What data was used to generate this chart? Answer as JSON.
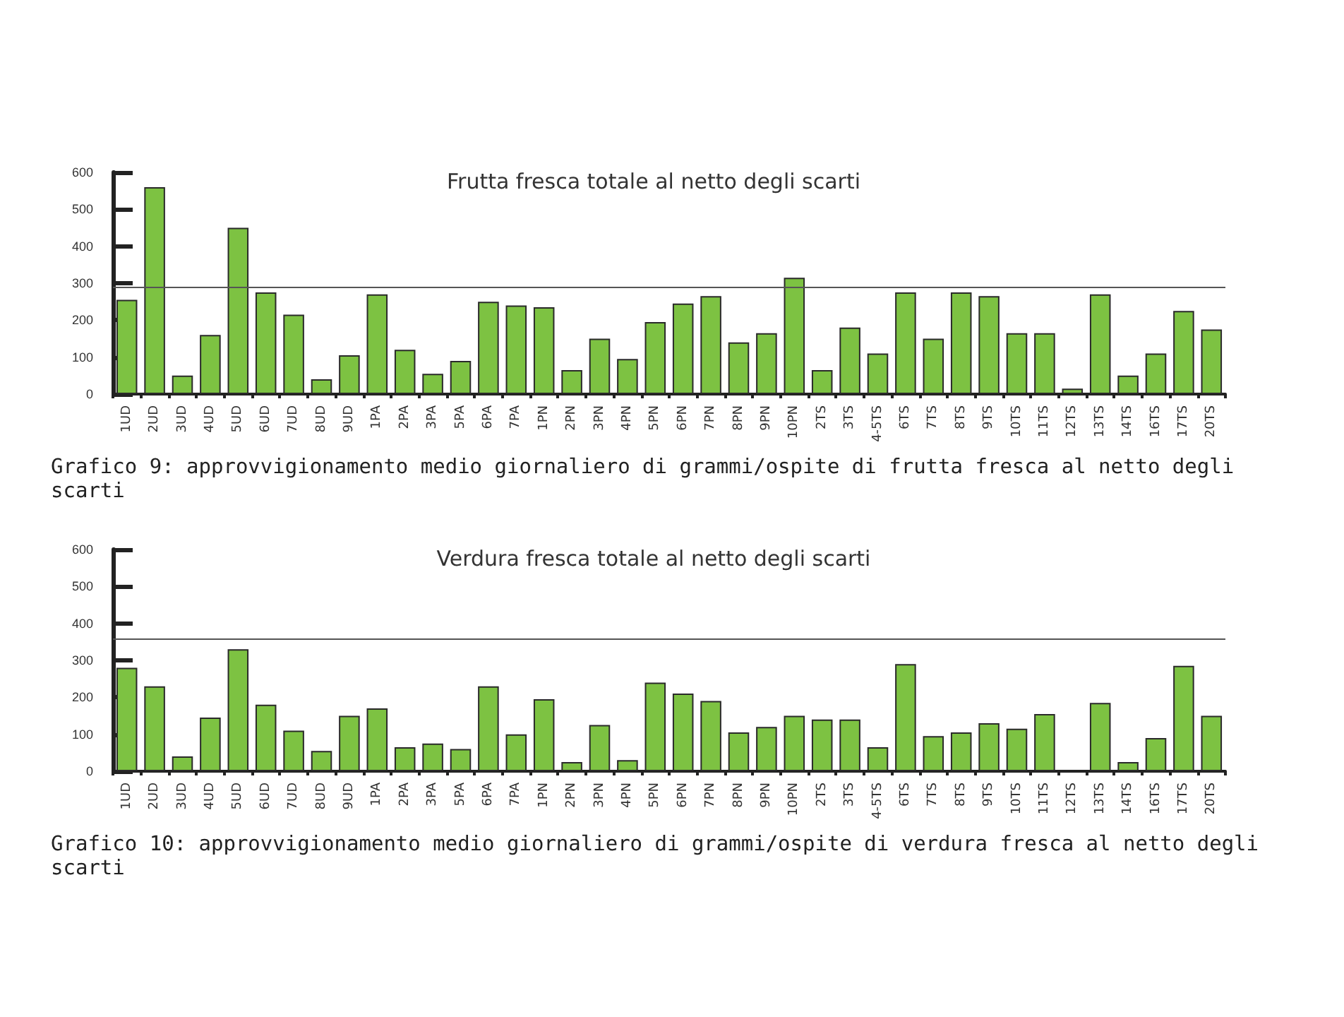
{
  "chart_data": [
    {
      "type": "bar",
      "title": "Frutta fresca totale al netto degli scarti",
      "categories": [
        "1UD",
        "2UD",
        "3UD",
        "4UD",
        "5UD",
        "6UD",
        "7UD",
        "8UD",
        "9UD",
        "1PA",
        "2PA",
        "3PA",
        "5PA",
        "6PA",
        "7PA",
        "1PN",
        "2PN",
        "3PN",
        "4PN",
        "5PN",
        "6PN",
        "7PN",
        "8PN",
        "9PN",
        "10PN",
        "2TS",
        "3TS",
        "4-5TS",
        "6TS",
        "7TS",
        "8TS",
        "9TS",
        "10TS",
        "11TS",
        "12TS",
        "13TS",
        "14TS",
        "16TS",
        "17TS",
        "20TS"
      ],
      "values": [
        255,
        560,
        50,
        160,
        450,
        275,
        215,
        40,
        105,
        270,
        120,
        55,
        90,
        250,
        240,
        235,
        65,
        150,
        95,
        195,
        245,
        265,
        140,
        165,
        315,
        65,
        180,
        110,
        275,
        150,
        275,
        265,
        165,
        165,
        15,
        270,
        50,
        110,
        225,
        175
      ],
      "color": "#7dc242",
      "ylim": [
        0,
        600
      ],
      "yticks": [
        0,
        100,
        200,
        300,
        400,
        500,
        600
      ],
      "grid": false,
      "ref_lines": [
        {
          "axis": "y",
          "value": 290,
          "color": "#555555"
        }
      ],
      "annotations": [
        "Grafico 9: approvvigionamento medio giornaliero di grammi/ospite di frutta fresca al netto degli scarti"
      ]
    },
    {
      "type": "bar",
      "title": "Verdura fresca totale al netto degli scarti",
      "categories": [
        "1UD",
        "2UD",
        "3UD",
        "4UD",
        "5UD",
        "6UD",
        "7UD",
        "8UD",
        "9UD",
        "1PA",
        "2PA",
        "3PA",
        "5PA",
        "6PA",
        "7PA",
        "1PN",
        "2PN",
        "3PN",
        "4PN",
        "5PN",
        "6PN",
        "7PN",
        "8PN",
        "9PN",
        "10PN",
        "2TS",
        "3TS",
        "4-5TS",
        "6TS",
        "7TS",
        "8TS",
        "9TS",
        "10TS",
        "11TS",
        "12TS",
        "13TS",
        "14TS",
        "16TS",
        "17TS",
        "20TS"
      ],
      "values": [
        280,
        230,
        40,
        145,
        330,
        180,
        110,
        55,
        150,
        170,
        65,
        75,
        60,
        230,
        100,
        195,
        25,
        125,
        30,
        240,
        210,
        190,
        105,
        120,
        150,
        140,
        140,
        65,
        290,
        95,
        105,
        130,
        115,
        155,
        null,
        185,
        25,
        90,
        285,
        150
      ],
      "color": "#7dc242",
      "ylim": [
        0,
        600
      ],
      "yticks": [
        0,
        100,
        200,
        300,
        400,
        500,
        600
      ],
      "grid": false,
      "ref_lines": [
        {
          "axis": "y",
          "value": 360,
          "color": "#555555"
        }
      ],
      "annotations": [
        "Grafico 10: approvvigionamento medio giornaliero di grammi/ospite di verdura fresca al netto degli scarti"
      ]
    }
  ]
}
